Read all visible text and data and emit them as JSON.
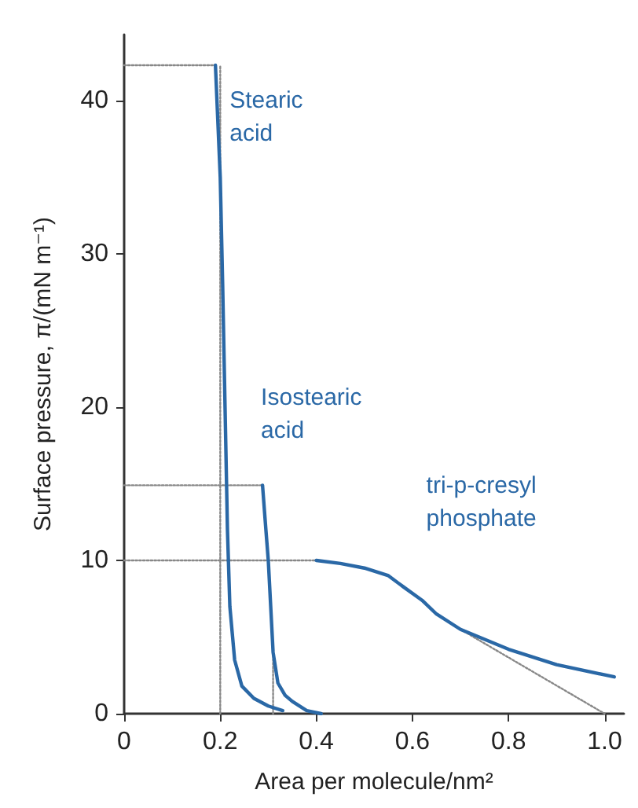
{
  "chart_data": {
    "type": "line",
    "xlabel": "Area per molecule/nm²",
    "ylabel": "Surface pressure, π/(mN m⁻¹)",
    "xlim": [
      0,
      1.04
    ],
    "ylim": [
      0,
      44.3
    ],
    "xticks": [
      0,
      0.2,
      0.4,
      0.6,
      0.8,
      {
        "value": 1,
        "label": "1.0"
      }
    ],
    "yticks": [
      0,
      10,
      20,
      30,
      40
    ],
    "grid": false,
    "marker": "none",
    "line_style": "solid",
    "series": [
      {
        "name": "Stearic acid",
        "color": "#2a68a6",
        "x": [
          0.19,
          0.2,
          0.205,
          0.21,
          0.215,
          0.22,
          0.23,
          0.245,
          0.27,
          0.3,
          0.33
        ],
        "values": [
          42.3,
          35,
          28,
          20,
          12,
          7,
          3.5,
          1.8,
          1,
          0.5,
          0.2
        ]
      },
      {
        "name": "Isostearic acid",
        "color": "#2a68a6",
        "x": [
          0.288,
          0.295,
          0.3,
          0.305,
          0.31,
          0.32,
          0.335,
          0.35,
          0.38,
          0.41
        ],
        "values": [
          14.9,
          12,
          10,
          7,
          4,
          2,
          1.2,
          0.8,
          0.2,
          0
        ]
      },
      {
        "name": "tri-p-cresyl phosphate",
        "color": "#2a68a6",
        "x": [
          0.4,
          0.45,
          0.5,
          0.55,
          0.58,
          0.62,
          0.65,
          0.7,
          0.8,
          0.9,
          1.02
        ],
        "values": [
          10,
          9.8,
          9.5,
          9,
          8.3,
          7.4,
          6.5,
          5.5,
          4.2,
          3.2,
          2.4
        ]
      },
      {
        "color": "#888888",
        "line_style": "dotted",
        "x": [
          0,
          0.19
        ],
        "values": [
          42.3,
          42.3
        ]
      },
      {
        "color": "#888888",
        "line_style": "dotted",
        "x": [
          0.2,
          0.2
        ],
        "values": [
          0,
          42.3
        ]
      },
      {
        "color": "#888888",
        "line_style": "dotted",
        "x": [
          0,
          0.288
        ],
        "values": [
          14.9,
          14.9
        ]
      },
      {
        "color": "#888888",
        "line_style": "dotted",
        "x": [
          0.31,
          0.31
        ],
        "values": [
          0,
          4
        ]
      },
      {
        "color": "#888888",
        "line_style": "dotted",
        "x": [
          0,
          0.4
        ],
        "values": [
          10,
          10
        ]
      },
      {
        "color": "#888888",
        "line_style": "dotted",
        "x": [
          0.7,
          1.0
        ],
        "values": [
          5.5,
          0
        ]
      }
    ]
  }
}
